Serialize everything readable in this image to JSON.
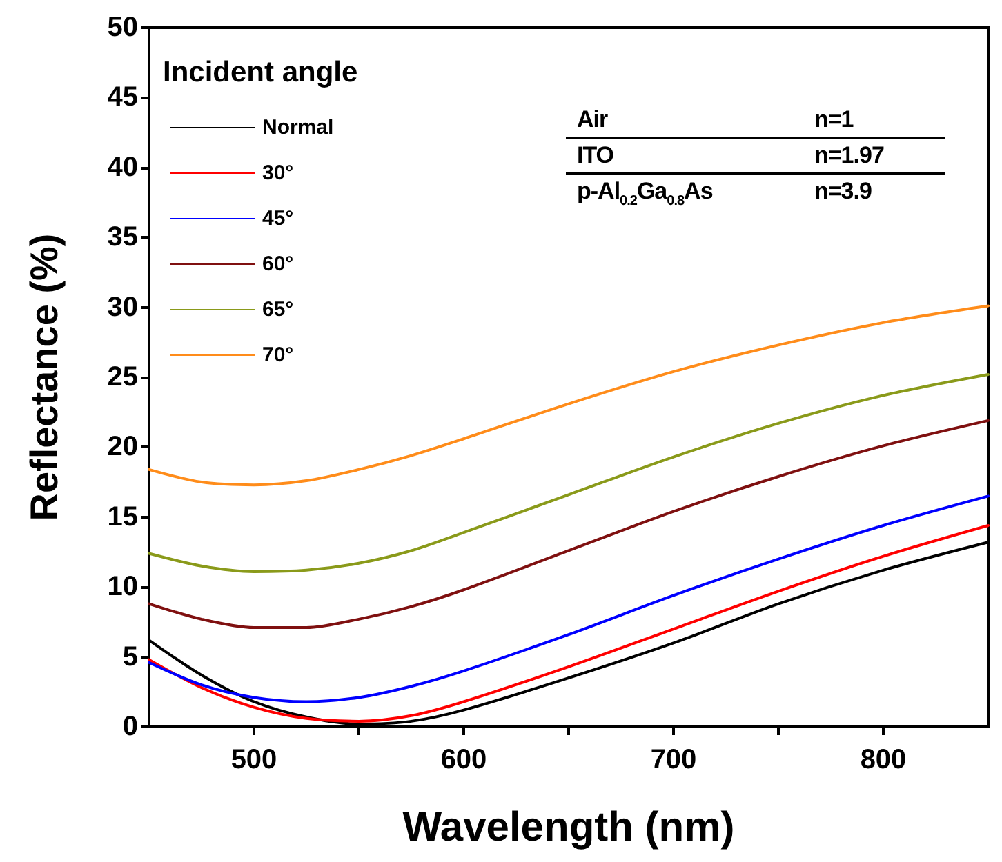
{
  "chart_data": {
    "type": "line",
    "xlabel": "Wavelength (nm)",
    "ylabel": "Reflectance (%)",
    "legend_title": "Incident angle",
    "legend": "top left",
    "grid": false,
    "marker": "none",
    "line_style": "solid",
    "x": [
      450,
      475,
      500,
      525,
      550,
      575,
      600,
      650,
      700,
      750,
      800,
      850
    ],
    "xlim": [
      450,
      850
    ],
    "xticks": [
      500,
      {
        "value": 550,
        "label": null
      },
      600,
      {
        "value": 650,
        "label": null
      },
      700,
      {
        "value": 750,
        "label": null
      },
      800
    ],
    "ylim": [
      0,
      50
    ],
    "yticks": [
      0,
      5,
      10,
      15,
      20,
      25,
      30,
      35,
      40,
      45,
      50
    ],
    "series": [
      {
        "name": "Normal",
        "color": "#000000",
        "values": [
          6.2,
          3.7,
          1.8,
          0.7,
          0.2,
          0.4,
          1.2,
          3.5,
          6.0,
          8.8,
          11.2,
          13.2
        ]
      },
      {
        "name": "30°",
        "color": "#ff0000",
        "values": [
          4.8,
          2.8,
          1.4,
          0.6,
          0.4,
          0.8,
          1.8,
          4.3,
          7.0,
          9.7,
          12.2,
          14.4
        ]
      },
      {
        "name": "45°",
        "color": "#0000ff",
        "values": [
          4.6,
          3.0,
          2.1,
          1.8,
          2.1,
          2.9,
          4.0,
          6.6,
          9.4,
          12.0,
          14.4,
          16.5
        ]
      },
      {
        "name": "60°",
        "color": "#7f1010",
        "values": [
          8.8,
          7.7,
          7.1,
          7.1,
          7.7,
          8.6,
          9.8,
          12.6,
          15.4,
          17.9,
          20.1,
          21.9
        ]
      },
      {
        "name": "65°",
        "color": "#8a9a1a",
        "values": [
          12.4,
          11.5,
          11.1,
          11.2,
          11.7,
          12.6,
          13.9,
          16.6,
          19.3,
          21.7,
          23.7,
          25.2
        ]
      },
      {
        "name": "70°",
        "color": "#ff8c1a",
        "values": [
          18.4,
          17.5,
          17.3,
          17.6,
          18.4,
          19.4,
          20.6,
          23.1,
          25.4,
          27.3,
          28.9,
          30.1
        ]
      }
    ],
    "annotations": [
      "Air",
      "n=1",
      "ITO",
      "n=1.97",
      "p-Al$_{0.2}$Ga$_{0.8}$As",
      "n=3.9"
    ]
  }
}
